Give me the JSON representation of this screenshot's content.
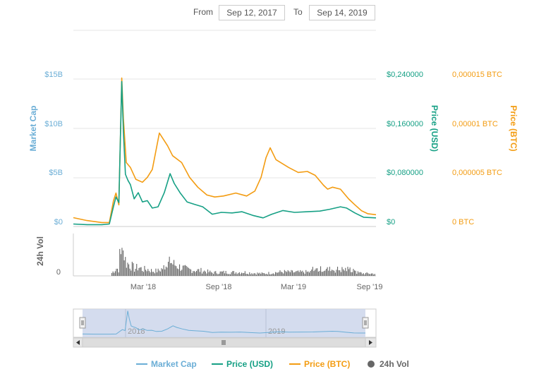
{
  "range": {
    "from_label": "From",
    "from_value": "Sep 12, 2017",
    "to_label": "To",
    "to_value": "Sep 14, 2019"
  },
  "colors": {
    "market_cap": "#6baed6",
    "price_usd": "#16a085",
    "price_btc": "#f39c12",
    "volume": "#666666",
    "navigator_fill": "#ccd6eb",
    "grid": "#e6e6e6"
  },
  "axes": {
    "left_title": "Market Cap",
    "left_ticks": [
      "$0",
      "$5B",
      "$10B",
      "$15B"
    ],
    "usd_title": "Price (USD)",
    "usd_ticks": [
      "$0",
      "$0,080000",
      "$0,160000",
      "$0,240000"
    ],
    "btc_title": "Price (BTC)",
    "btc_ticks": [
      "0 BTC",
      "0,000005 BTC",
      "0,00001 BTC",
      "0,000015 BTC"
    ],
    "vol_title": "24h Vol",
    "vol_tick": "0",
    "x_ticks": [
      "Mar '18",
      "Sep '18",
      "Mar '19",
      "Sep '19"
    ],
    "navigator_ticks": [
      "2018",
      "2019"
    ]
  },
  "legend": [
    {
      "label": "Market Cap",
      "key": "market_cap",
      "symbol": "line"
    },
    {
      "label": "Price (USD)",
      "key": "price_usd",
      "symbol": "line"
    },
    {
      "label": "Price (BTC)",
      "key": "price_btc",
      "symbol": "line"
    },
    {
      "label": "24h Vol",
      "key": "volume",
      "symbol": "dot"
    }
  ],
  "chart_data": {
    "type": "line",
    "x_range": [
      "2017-09-12",
      "2019-09-14"
    ],
    "grid": true,
    "legend_position": "bottom",
    "x_ticks": [
      {
        "label": "Mar '18",
        "date": "2018-03-01"
      },
      {
        "label": "Sep '18",
        "date": "2018-09-01"
      },
      {
        "label": "Mar '19",
        "date": "2019-03-01"
      },
      {
        "label": "Sep '19",
        "date": "2019-09-01"
      }
    ],
    "axes": [
      {
        "name": "Market Cap",
        "ylim": [
          0,
          15000000000
        ]
      },
      {
        "name": "Price (USD)",
        "ylim": [
          0,
          0.24
        ]
      },
      {
        "name": "Price (BTC)",
        "ylim": [
          0,
          1.5e-05
        ]
      }
    ],
    "series": [
      {
        "name": "Price (USD)",
        "axis": "Price (USD)",
        "points": [
          [
            "2017-09-12",
            0.004
          ],
          [
            "2017-10-15",
            0.003
          ],
          [
            "2017-11-20",
            0.003
          ],
          [
            "2017-12-08",
            0.004
          ],
          [
            "2017-12-18",
            0.032
          ],
          [
            "2017-12-24",
            0.048
          ],
          [
            "2017-12-31",
            0.039
          ],
          [
            "2018-01-07",
            0.236
          ],
          [
            "2018-01-11",
            0.155
          ],
          [
            "2018-01-16",
            0.085
          ],
          [
            "2018-01-22",
            0.075
          ],
          [
            "2018-01-28",
            0.068
          ],
          [
            "2018-02-06",
            0.045
          ],
          [
            "2018-02-16",
            0.055
          ],
          [
            "2018-02-26",
            0.04
          ],
          [
            "2018-03-10",
            0.042
          ],
          [
            "2018-03-22",
            0.03
          ],
          [
            "2018-04-05",
            0.032
          ],
          [
            "2018-04-20",
            0.055
          ],
          [
            "2018-05-04",
            0.086
          ],
          [
            "2018-05-14",
            0.07
          ],
          [
            "2018-05-28",
            0.055
          ],
          [
            "2018-06-14",
            0.04
          ],
          [
            "2018-07-02",
            0.036
          ],
          [
            "2018-07-22",
            0.032
          ],
          [
            "2018-08-14",
            0.02
          ],
          [
            "2018-09-05",
            0.023
          ],
          [
            "2018-10-01",
            0.022
          ],
          [
            "2018-10-25",
            0.024
          ],
          [
            "2018-11-20",
            0.018
          ],
          [
            "2018-12-15",
            0.014
          ],
          [
            "2019-01-05",
            0.02
          ],
          [
            "2019-02-01",
            0.026
          ],
          [
            "2019-03-01",
            0.023
          ],
          [
            "2019-04-01",
            0.024
          ],
          [
            "2019-05-01",
            0.025
          ],
          [
            "2019-05-25",
            0.028
          ],
          [
            "2019-06-20",
            0.032
          ],
          [
            "2019-07-05",
            0.03
          ],
          [
            "2019-07-25",
            0.022
          ],
          [
            "2019-08-15",
            0.015
          ],
          [
            "2019-09-14",
            0.014
          ]
        ]
      },
      {
        "name": "Price (BTC)",
        "axis": "Price (BTC)",
        "points": [
          [
            "2017-09-12",
            9e-07
          ],
          [
            "2017-10-15",
            6e-07
          ],
          [
            "2017-11-20",
            4e-07
          ],
          [
            "2017-12-08",
            4e-07
          ],
          [
            "2017-12-18",
            2.6e-06
          ],
          [
            "2017-12-24",
            3.4e-06
          ],
          [
            "2017-12-31",
            2.2e-06
          ],
          [
            "2018-01-07",
            1.51e-05
          ],
          [
            "2018-01-11",
            1.1e-05
          ],
          [
            "2018-01-18",
            6.5e-06
          ],
          [
            "2018-01-28",
            6e-06
          ],
          [
            "2018-02-10",
            4.8e-06
          ],
          [
            "2018-02-26",
            4.5e-06
          ],
          [
            "2018-03-10",
            5e-06
          ],
          [
            "2018-03-22",
            5.8e-06
          ],
          [
            "2018-04-08",
            9.5e-06
          ],
          [
            "2018-04-28",
            8.2e-06
          ],
          [
            "2018-05-10",
            7.2e-06
          ],
          [
            "2018-06-01",
            6.5e-06
          ],
          [
            "2018-06-20",
            5e-06
          ],
          [
            "2018-07-10",
            4e-06
          ],
          [
            "2018-08-01",
            3.2e-06
          ],
          [
            "2018-08-20",
            3e-06
          ],
          [
            "2018-09-10",
            3.1e-06
          ],
          [
            "2018-10-10",
            3.4e-06
          ],
          [
            "2018-11-05",
            3.1e-06
          ],
          [
            "2018-11-25",
            3.6e-06
          ],
          [
            "2018-12-10",
            5e-06
          ],
          [
            "2018-12-22",
            7e-06
          ],
          [
            "2019-01-01",
            8e-06
          ],
          [
            "2019-01-15",
            6.8e-06
          ],
          [
            "2019-02-15",
            6e-06
          ],
          [
            "2019-03-10",
            5.5e-06
          ],
          [
            "2019-04-01",
            5.6e-06
          ],
          [
            "2019-04-20",
            5.2e-06
          ],
          [
            "2019-05-10",
            4.2e-06
          ],
          [
            "2019-05-20",
            3.8e-06
          ],
          [
            "2019-06-01",
            4e-06
          ],
          [
            "2019-06-20",
            3.8e-06
          ],
          [
            "2019-07-10",
            2.8e-06
          ],
          [
            "2019-07-25",
            2.2e-06
          ],
          [
            "2019-08-10",
            1.6e-06
          ],
          [
            "2019-08-25",
            1.3e-06
          ],
          [
            "2019-09-14",
            1.2e-06
          ]
        ]
      }
    ]
  }
}
